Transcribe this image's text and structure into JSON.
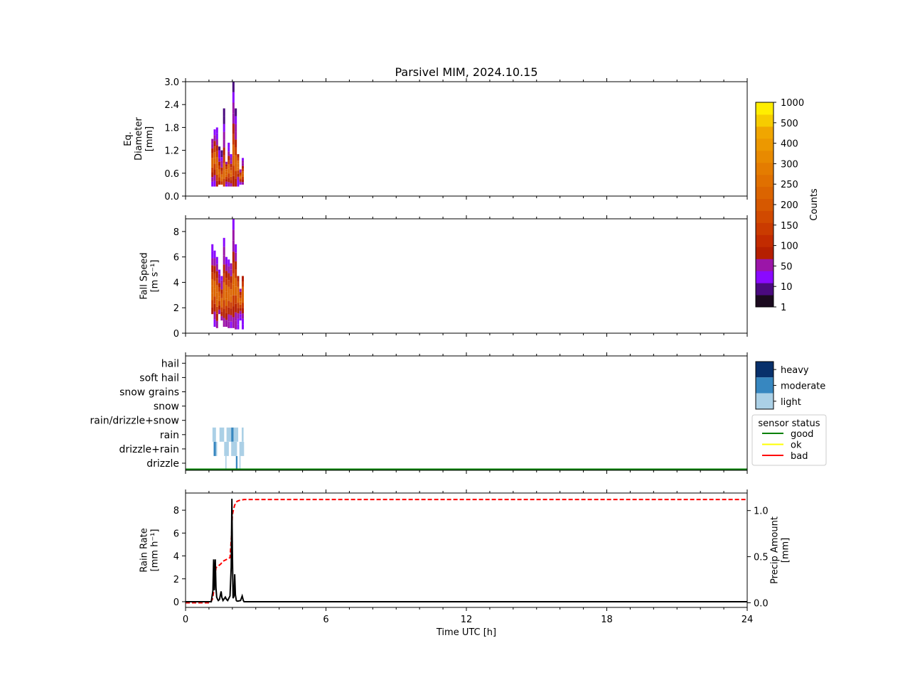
{
  "title": "Parsivel MIM, 2024.10.15",
  "colors": {
    "black": "#000000",
    "good": "#008000",
    "ok": "#ffff00",
    "bad": "#ff0000",
    "precip_amount": "#ff0000",
    "rain_rate": "#000000",
    "heavy": "#08306b",
    "moderate": "#3787c0",
    "light": "#abd0e6"
  },
  "chart_data": [
    {
      "type": "heatmap",
      "name": "diameter",
      "ylabel": [
        "Eq.",
        "Diameter",
        "[mm]"
      ],
      "ylim": [
        0,
        3.0
      ],
      "yticks": [
        "0.0",
        "0.6",
        "1.2",
        "1.8",
        "2.4",
        "3.0"
      ],
      "xlim": [
        0,
        24
      ],
      "columns": [
        {
          "t": 1.15,
          "lo": 0.25,
          "hi": 1.5,
          "core": 0.9
        },
        {
          "t": 1.25,
          "lo": 0.25,
          "hi": 1.75,
          "core": 1.0
        },
        {
          "t": 1.35,
          "lo": 0.25,
          "hi": 1.8,
          "core": 0.8
        },
        {
          "t": 1.45,
          "lo": 0.3,
          "hi": 1.3,
          "core": 0.6
        },
        {
          "t": 1.55,
          "lo": 0.3,
          "hi": 1.2,
          "core": 0.5
        },
        {
          "t": 1.65,
          "lo": 0.25,
          "hi": 2.3,
          "core": 0.7
        },
        {
          "t": 1.75,
          "lo": 0.25,
          "hi": 0.9,
          "core": 0.6
        },
        {
          "t": 1.85,
          "lo": 0.25,
          "hi": 1.4,
          "core": 0.7
        },
        {
          "t": 1.95,
          "lo": 0.25,
          "hi": 1.1,
          "core": 0.6
        },
        {
          "t": 2.05,
          "lo": 0.25,
          "hi": 3.0,
          "core": 1.1
        },
        {
          "t": 2.15,
          "lo": 0.25,
          "hi": 2.3,
          "core": 0.9
        },
        {
          "t": 2.25,
          "lo": 0.25,
          "hi": 1.1,
          "core": 0.8
        },
        {
          "t": 2.35,
          "lo": 0.3,
          "hi": 0.7,
          "core": 0.5
        },
        {
          "t": 2.45,
          "lo": 0.3,
          "hi": 1.0,
          "core": 0.6
        }
      ]
    },
    {
      "type": "heatmap",
      "name": "fall-speed",
      "ylabel": [
        "Fall Speed",
        "[m s⁻¹]"
      ],
      "ylim": [
        0,
        9.0
      ],
      "yticks": [
        "0",
        "2",
        "4",
        "6",
        "8"
      ],
      "xlim": [
        0,
        24
      ],
      "columns": [
        {
          "t": 1.15,
          "lo": 1.5,
          "hi": 7.0,
          "core": 3.5
        },
        {
          "t": 1.25,
          "lo": 0.5,
          "hi": 6.5,
          "core": 3.5
        },
        {
          "t": 1.35,
          "lo": 0.4,
          "hi": 6.0,
          "core": 3.0
        },
        {
          "t": 1.45,
          "lo": 1.5,
          "hi": 5.0,
          "core": 3.0
        },
        {
          "t": 1.55,
          "lo": 1.0,
          "hi": 4.5,
          "core": 2.5
        },
        {
          "t": 1.65,
          "lo": 0.5,
          "hi": 7.5,
          "core": 3.5
        },
        {
          "t": 1.75,
          "lo": 0.5,
          "hi": 6.0,
          "core": 3.0
        },
        {
          "t": 1.85,
          "lo": 0.4,
          "hi": 5.8,
          "core": 3.0
        },
        {
          "t": 1.95,
          "lo": 0.4,
          "hi": 5.5,
          "core": 3.0
        },
        {
          "t": 2.05,
          "lo": 0.4,
          "hi": 9.0,
          "core": 4.0
        },
        {
          "t": 2.15,
          "lo": 0.3,
          "hi": 7.0,
          "core": 3.5
        },
        {
          "t": 2.25,
          "lo": 0.3,
          "hi": 4.5,
          "core": 3.0
        },
        {
          "t": 2.35,
          "lo": 1.0,
          "hi": 3.5,
          "core": 2.5
        },
        {
          "t": 2.45,
          "lo": 0.3,
          "hi": 4.5,
          "core": 3.0
        }
      ]
    },
    {
      "type": "heatmap",
      "name": "precip-type",
      "categories": [
        "drizzle",
        "drizzle+rain",
        "rain",
        "rain/drizzle+snow",
        "snow",
        "snow grains",
        "soft hail",
        "hail"
      ],
      "xlim": [
        0,
        24
      ],
      "cells": [
        {
          "t0": 1.15,
          "t1": 1.3,
          "cat": "rain",
          "level": "light"
        },
        {
          "t0": 1.2,
          "t1": 1.3,
          "cat": "drizzle+rain",
          "level": "moderate"
        },
        {
          "t0": 1.3,
          "t1": 1.35,
          "cat": "drizzle+rain",
          "level": "light"
        },
        {
          "t0": 1.45,
          "t1": 1.65,
          "cat": "rain",
          "level": "light"
        },
        {
          "t0": 1.65,
          "t1": 1.85,
          "cat": "drizzle+rain",
          "level": "light"
        },
        {
          "t0": 1.7,
          "t1": 1.75,
          "cat": "drizzle",
          "level": "light"
        },
        {
          "t0": 1.75,
          "t1": 1.95,
          "cat": "rain",
          "level": "light"
        },
        {
          "t0": 1.95,
          "t1": 2.05,
          "cat": "rain",
          "level": "moderate"
        },
        {
          "t0": 1.95,
          "t1": 2.2,
          "cat": "drizzle+rain",
          "level": "light"
        },
        {
          "t0": 2.05,
          "t1": 2.25,
          "cat": "rain",
          "level": "light"
        },
        {
          "t0": 2.15,
          "t1": 2.22,
          "cat": "drizzle",
          "level": "moderate"
        },
        {
          "t0": 2.3,
          "t1": 2.35,
          "cat": "drizzle",
          "level": "light"
        },
        {
          "t0": 2.3,
          "t1": 2.5,
          "cat": "drizzle+rain",
          "level": "light"
        },
        {
          "t0": 2.4,
          "t1": 2.48,
          "cat": "rain",
          "level": "light"
        }
      ],
      "status": [
        {
          "t0": 0,
          "t1": 24,
          "value": "good"
        }
      ]
    },
    {
      "type": "line",
      "name": "rain",
      "xlabel": "Time UTC [h]",
      "ylabel": [
        "Rain Rate",
        "[mm h⁻¹]"
      ],
      "y2label": [
        "Precip Amount",
        "[mm]"
      ],
      "xlim": [
        0,
        24
      ],
      "ylim": [
        -0.5,
        9.5
      ],
      "y2lim": [
        -0.05,
        1.19
      ],
      "xticks": [
        "0",
        "6",
        "12",
        "18",
        "24"
      ],
      "yticks": [
        "0",
        "2",
        "4",
        "6",
        "8"
      ],
      "y2ticks": [
        "0.0",
        "0.5",
        "1.0"
      ],
      "series": [
        {
          "key": "rain_rate",
          "x": [
            0,
            1.1,
            1.17,
            1.2,
            1.23,
            1.27,
            1.3,
            1.33,
            1.37,
            1.4,
            1.45,
            1.52,
            1.55,
            1.6,
            1.7,
            1.75,
            1.8,
            1.9,
            1.95,
            1.98,
            2.0,
            2.03,
            2.07,
            2.1,
            2.13,
            2.17,
            2.2,
            2.25,
            2.35,
            2.42,
            2.47,
            2.5,
            24
          ],
          "y": [
            0,
            0,
            1.0,
            3.7,
            1.0,
            3.7,
            1.2,
            0.4,
            0.2,
            0.1,
            0.2,
            0.9,
            0.4,
            0.1,
            0.4,
            0.2,
            0.1,
            0.5,
            3.0,
            9.0,
            4.5,
            0.3,
            0.5,
            2.4,
            0.6,
            0.1,
            0.05,
            0.05,
            0.1,
            0.5,
            0.1,
            0,
            0
          ]
        },
        {
          "key": "precip_amount",
          "x": [
            0,
            1.05,
            1.15,
            1.22,
            1.3,
            1.35,
            1.5,
            1.6,
            1.75,
            1.9,
            1.97,
            2.0,
            2.03,
            2.1,
            2.2,
            2.3,
            2.5,
            24
          ],
          "y": [
            0,
            0,
            0.04,
            0.15,
            0.38,
            0.39,
            0.42,
            0.45,
            0.47,
            0.49,
            0.75,
            0.95,
            0.99,
            1.06,
            1.1,
            1.11,
            1.12,
            1.12
          ]
        }
      ]
    }
  ],
  "colorbar": {
    "label": "Counts",
    "ticks": [
      "1",
      "10",
      "50",
      "100",
      "150",
      "200",
      "250",
      "300",
      "400",
      "500",
      "1000"
    ],
    "colors": [
      "#1b0a1f",
      "#4a0a7f",
      "#8a09ff",
      "#9b15a8",
      "#b51f00",
      "#c22b00",
      "#ca3b00",
      "#d14a00",
      "#d65800",
      "#db6400",
      "#e07000",
      "#e47c00",
      "#e88a00",
      "#ec9800",
      "#f0a600",
      "#f6cc00",
      "#ffee00"
    ]
  },
  "intensity_legend": [
    "heavy",
    "moderate",
    "light"
  ],
  "status_legend": {
    "title": "sensor status",
    "items": [
      "good",
      "ok",
      "bad"
    ]
  }
}
